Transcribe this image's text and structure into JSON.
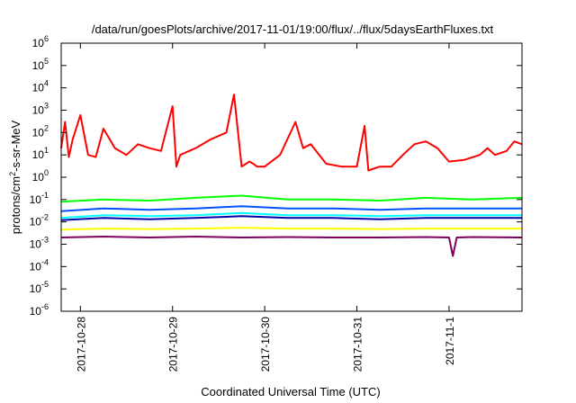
{
  "chart_data": {
    "type": "line",
    "title": "/data/run/goesPlots/archive/2017-11-01/19:00/flux/../flux/5daysEarthFluxes.txt",
    "xlabel": "Coordinated Universal Time (UTC)",
    "ylabel_base": "protons/cm",
    "ylabel_sup": "2",
    "ylabel_rest": "-s-sr-MeV",
    "y_scale": "log",
    "ylim": [
      1e-06,
      1000000.0
    ],
    "xlim": [
      "2017-10-27T19:00",
      "2017-11-01T19:00"
    ],
    "grid": false,
    "legend": "none",
    "y_ticks": [
      {
        "exp": "-6",
        "value": 1e-06
      },
      {
        "exp": "-5",
        "value": 1e-05
      },
      {
        "exp": "-4",
        "value": 0.0001
      },
      {
        "exp": "-3",
        "value": 0.001
      },
      {
        "exp": "-2",
        "value": 0.01
      },
      {
        "exp": "-1",
        "value": 0.1
      },
      {
        "exp": "0",
        "value": 1
      },
      {
        "exp": "1",
        "value": 10
      },
      {
        "exp": "2",
        "value": 100
      },
      {
        "exp": "3",
        "value": 1000
      },
      {
        "exp": "4",
        "value": 10000
      },
      {
        "exp": "5",
        "value": 100000
      },
      {
        "exp": "6",
        "value": 1000000
      }
    ],
    "y_tick_base": "10",
    "x_ticks": [
      {
        "label": "2017-10-28",
        "time": "2017-10-28T00:00"
      },
      {
        "label": "2017-10-29",
        "time": "2017-10-29T00:00"
      },
      {
        "label": "2017-10-30",
        "time": "2017-10-30T00:00"
      },
      {
        "label": "2017-10-31",
        "time": "2017-10-31T00:00"
      },
      {
        "label": "2017-11-1",
        "time": "2017-11-01T00:00"
      }
    ],
    "series": [
      {
        "color": "#ff0000",
        "x": [
          "2017-10-27T19:00",
          "2017-10-27T20:00",
          "2017-10-27T21:00",
          "2017-10-27T22:00",
          "2017-10-28T00:00",
          "2017-10-28T02:00",
          "2017-10-28T04:00",
          "2017-10-28T06:00",
          "2017-10-28T09:00",
          "2017-10-28T12:00",
          "2017-10-28T15:00",
          "2017-10-28T18:00",
          "2017-10-28T21:00",
          "2017-10-29T00:00",
          "2017-10-29T01:00",
          "2017-10-29T02:00",
          "2017-10-29T06:00",
          "2017-10-29T10:00",
          "2017-10-29T14:00",
          "2017-10-29T16:00",
          "2017-10-29T18:00",
          "2017-10-29T20:00",
          "2017-10-29T21:00",
          "2017-10-29T22:00",
          "2017-10-30T00:00",
          "2017-10-30T04:00",
          "2017-10-30T08:00",
          "2017-10-30T10:00",
          "2017-10-30T12:00",
          "2017-10-30T16:00",
          "2017-10-30T20:00",
          "2017-10-31T00:00",
          "2017-10-31T02:00",
          "2017-10-31T03:00",
          "2017-10-31T06:00",
          "2017-10-31T09:00",
          "2017-10-31T12:00",
          "2017-10-31T15:00",
          "2017-10-31T18:00",
          "2017-10-31T21:00",
          "2017-11-01T00:00",
          "2017-11-01T04:00",
          "2017-11-01T08:00",
          "2017-11-01T10:00",
          "2017-11-01T12:00",
          "2017-11-01T15:00",
          "2017-11-01T17:00",
          "2017-11-01T19:00"
        ],
        "values": [
          20,
          300,
          8,
          50,
          600,
          10,
          8,
          150,
          20,
          10,
          30,
          20,
          15,
          1500,
          3,
          10,
          20,
          50,
          100,
          5000,
          3,
          5,
          4,
          3,
          3,
          10,
          300,
          20,
          30,
          4,
          3,
          3,
          200,
          2,
          3,
          3,
          10,
          30,
          40,
          20,
          5,
          6,
          10,
          20,
          10,
          15,
          40,
          30
        ]
      },
      {
        "color": "#00ff00",
        "x": [
          "2017-10-27T19:00",
          "2017-10-28T06:00",
          "2017-10-28T18:00",
          "2017-10-29T06:00",
          "2017-10-29T18:00",
          "2017-10-30T06:00",
          "2017-10-30T18:00",
          "2017-10-31T06:00",
          "2017-10-31T18:00",
          "2017-11-01T06:00",
          "2017-11-01T19:00"
        ],
        "values": [
          0.08,
          0.1,
          0.09,
          0.12,
          0.15,
          0.1,
          0.1,
          0.09,
          0.12,
          0.1,
          0.12
        ]
      },
      {
        "color": "#00ffff",
        "x": [
          "2017-10-27T19:00",
          "2017-10-28T06:00",
          "2017-10-28T18:00",
          "2017-10-29T06:00",
          "2017-10-29T18:00",
          "2017-10-30T06:00",
          "2017-10-30T18:00",
          "2017-10-31T06:00",
          "2017-10-31T18:00",
          "2017-11-01T06:00",
          "2017-11-01T19:00"
        ],
        "values": [
          0.015,
          0.02,
          0.018,
          0.02,
          0.025,
          0.02,
          0.02,
          0.018,
          0.02,
          0.02,
          0.02
        ]
      },
      {
        "color": "#0050ff",
        "x": [
          "2017-10-27T19:00",
          "2017-10-28T06:00",
          "2017-10-28T18:00",
          "2017-10-29T06:00",
          "2017-10-29T18:00",
          "2017-10-30T06:00",
          "2017-10-30T18:00",
          "2017-10-31T06:00",
          "2017-10-31T18:00",
          "2017-11-01T06:00",
          "2017-11-01T19:00"
        ],
        "values": [
          0.03,
          0.04,
          0.035,
          0.04,
          0.05,
          0.04,
          0.04,
          0.035,
          0.04,
          0.04,
          0.04
        ]
      },
      {
        "color": "#0000aa",
        "x": [
          "2017-10-27T19:00",
          "2017-10-28T06:00",
          "2017-10-28T18:00",
          "2017-10-29T06:00",
          "2017-10-29T18:00",
          "2017-10-30T06:00",
          "2017-10-30T18:00",
          "2017-10-31T06:00",
          "2017-10-31T18:00",
          "2017-11-01T06:00",
          "2017-11-01T19:00"
        ],
        "values": [
          0.012,
          0.015,
          0.013,
          0.015,
          0.018,
          0.015,
          0.015,
          0.013,
          0.015,
          0.015,
          0.015
        ]
      },
      {
        "color": "#ffff00",
        "x": [
          "2017-10-27T19:00",
          "2017-10-28T06:00",
          "2017-10-28T18:00",
          "2017-10-29T06:00",
          "2017-10-29T18:00",
          "2017-10-30T06:00",
          "2017-10-30T18:00",
          "2017-10-31T06:00",
          "2017-10-31T18:00",
          "2017-11-01T06:00",
          "2017-11-01T19:00"
        ],
        "values": [
          0.0045,
          0.005,
          0.0048,
          0.005,
          0.0055,
          0.005,
          0.005,
          0.0048,
          0.005,
          0.005,
          0.005
        ]
      },
      {
        "color": "#800060",
        "x": [
          "2017-10-27T19:00",
          "2017-10-28T06:00",
          "2017-10-28T18:00",
          "2017-10-29T06:00",
          "2017-10-29T18:00",
          "2017-10-30T06:00",
          "2017-10-30T18:00",
          "2017-10-31T06:00",
          "2017-10-31T18:00",
          "2017-11-01T00:00",
          "2017-11-01T01:00",
          "2017-11-01T02:00",
          "2017-11-01T06:00",
          "2017-11-01T19:00"
        ],
        "values": [
          0.002,
          0.0022,
          0.002,
          0.0022,
          0.002,
          0.0021,
          0.002,
          0.002,
          0.0021,
          0.002,
          0.0003,
          0.002,
          0.0021,
          0.002
        ]
      }
    ]
  }
}
